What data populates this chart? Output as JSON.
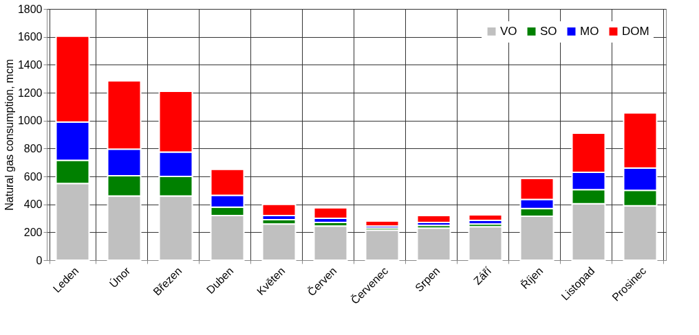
{
  "chart_data": {
    "type": "bar",
    "stacked": true,
    "ylabel": "Natural gas consumption, mcm",
    "categories": [
      "Leden",
      "Únor",
      "Březen",
      "Duben",
      "Květen",
      "Červen",
      "Červenec",
      "Srpen",
      "Září",
      "Říjen",
      "Listopad",
      "Prosinec"
    ],
    "series": [
      {
        "name": "VO",
        "color": "#c0c0c0",
        "values": [
          550,
          460,
          460,
          320,
          260,
          245,
          215,
          230,
          240,
          315,
          405,
          390
        ]
      },
      {
        "name": "SO",
        "color": "#008000",
        "values": [
          165,
          145,
          140,
          60,
          30,
          25,
          15,
          20,
          20,
          55,
          100,
          110
        ]
      },
      {
        "name": "MO",
        "color": "#0000ff",
        "values": [
          275,
          190,
          175,
          85,
          30,
          30,
          15,
          20,
          25,
          65,
          125,
          160
        ]
      },
      {
        "name": "DOM",
        "color": "#ff0000",
        "values": [
          615,
          490,
          435,
          185,
          80,
          75,
          35,
          50,
          40,
          150,
          280,
          395
        ]
      }
    ],
    "ylim": [
      0,
      1800
    ],
    "yticks": [
      0,
      200,
      400,
      600,
      800,
      1000,
      1200,
      1400,
      1600,
      1800
    ],
    "grid": true,
    "legend": "top right"
  }
}
